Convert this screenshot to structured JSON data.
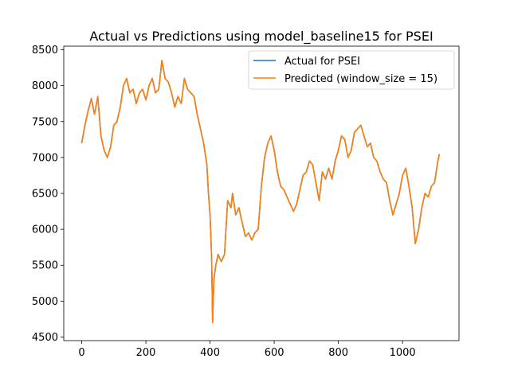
{
  "chart_data": {
    "type": "line",
    "title": "Actual vs Predictions using model_baseline15 for PSEI",
    "xlabel": "",
    "ylabel": "",
    "xlim": [
      -56,
      1176
    ],
    "ylim": [
      4450,
      8550
    ],
    "xticks": [
      0,
      200,
      400,
      600,
      800,
      1000
    ],
    "yticks": [
      4500,
      5000,
      5500,
      6000,
      6500,
      7000,
      7500,
      8000,
      8500
    ],
    "grid": false,
    "legend_position": "top-right",
    "series": [
      {
        "name": "Actual for PSEI",
        "color": "#1f77b4",
        "x": [
          0,
          10,
          20,
          30,
          40,
          50,
          60,
          70,
          80,
          90,
          100,
          110,
          120,
          130,
          140,
          150,
          160,
          170,
          180,
          190,
          200,
          210,
          220,
          230,
          240,
          250,
          260,
          270,
          280,
          290,
          300,
          310,
          320,
          330,
          340,
          350,
          360,
          370,
          380,
          390,
          395,
          400,
          405,
          408,
          412,
          418,
          425,
          435,
          445,
          455,
          465,
          470,
          480,
          490,
          500,
          510,
          520,
          530,
          540,
          550,
          560,
          570,
          580,
          590,
          600,
          610,
          620,
          630,
          640,
          650,
          660,
          670,
          680,
          690,
          700,
          710,
          720,
          730,
          740,
          750,
          760,
          770,
          780,
          790,
          800,
          810,
          820,
          830,
          840,
          850,
          860,
          870,
          880,
          890,
          900,
          910,
          920,
          930,
          940,
          950,
          960,
          970,
          980,
          990,
          1000,
          1010,
          1020,
          1030,
          1040,
          1050,
          1060,
          1070,
          1080,
          1090,
          1100,
          1110,
          1115
        ],
        "y": [
          7200,
          7450,
          7650,
          7820,
          7600,
          7850,
          7300,
          7100,
          7000,
          7150,
          7450,
          7500,
          7700,
          8000,
          8100,
          7900,
          7950,
          7750,
          7900,
          7950,
          7800,
          8000,
          8100,
          7900,
          7950,
          8350,
          8100,
          8050,
          7900,
          7700,
          7850,
          7750,
          8100,
          7950,
          7900,
          7850,
          7600,
          7400,
          7200,
          6900,
          6500,
          6200,
          5600,
          4700,
          5300,
          5500,
          5650,
          5550,
          5650,
          6400,
          6300,
          6500,
          6200,
          6300,
          6100,
          5900,
          5950,
          5850,
          5950,
          6000,
          6600,
          7000,
          7200,
          7300,
          7100,
          6800,
          6600,
          6550,
          6450,
          6350,
          6250,
          6350,
          6550,
          6750,
          6800,
          6950,
          6900,
          6650,
          6400,
          6800,
          6700,
          6850,
          6700,
          6950,
          7100,
          7300,
          7250,
          7000,
          7100,
          7350,
          7400,
          7450,
          7300,
          7150,
          7200,
          7000,
          6950,
          6800,
          6700,
          6650,
          6400,
          6200,
          6350,
          6500,
          6750,
          6850,
          6600,
          6300,
          5800,
          6000,
          6300,
          6500,
          6450,
          6600,
          6650,
          6950,
          7050
        ]
      },
      {
        "name": "Predicted (window_size = 15)",
        "color": "#ff7f0e",
        "x": [
          0,
          10,
          20,
          30,
          40,
          50,
          60,
          70,
          80,
          90,
          100,
          110,
          120,
          130,
          140,
          150,
          160,
          170,
          180,
          190,
          200,
          210,
          220,
          230,
          240,
          250,
          260,
          270,
          280,
          290,
          300,
          310,
          320,
          330,
          340,
          350,
          360,
          370,
          380,
          390,
          395,
          400,
          405,
          408,
          412,
          418,
          425,
          435,
          445,
          455,
          465,
          470,
          480,
          490,
          500,
          510,
          520,
          530,
          540,
          550,
          560,
          570,
          580,
          590,
          600,
          610,
          620,
          630,
          640,
          650,
          660,
          670,
          680,
          690,
          700,
          710,
          720,
          730,
          740,
          750,
          760,
          770,
          780,
          790,
          800,
          810,
          820,
          830,
          840,
          850,
          860,
          870,
          880,
          890,
          900,
          910,
          920,
          930,
          940,
          950,
          960,
          970,
          980,
          990,
          1000,
          1010,
          1020,
          1030,
          1040,
          1050,
          1060,
          1070,
          1080,
          1090,
          1100,
          1110,
          1115
        ],
        "y": [
          7200,
          7450,
          7650,
          7820,
          7600,
          7850,
          7300,
          7100,
          7000,
          7150,
          7450,
          7500,
          7700,
          8000,
          8100,
          7900,
          7950,
          7750,
          7900,
          7950,
          7800,
          8000,
          8100,
          7900,
          7950,
          8350,
          8100,
          8050,
          7900,
          7700,
          7850,
          7750,
          8100,
          7950,
          7900,
          7850,
          7600,
          7400,
          7200,
          6900,
          6500,
          6200,
          5600,
          4700,
          5300,
          5500,
          5650,
          5550,
          5650,
          6400,
          6300,
          6500,
          6200,
          6300,
          6100,
          5900,
          5950,
          5850,
          5950,
          6000,
          6600,
          7000,
          7200,
          7300,
          7100,
          6800,
          6600,
          6550,
          6450,
          6350,
          6250,
          6350,
          6550,
          6750,
          6800,
          6950,
          6900,
          6650,
          6400,
          6800,
          6700,
          6850,
          6700,
          6950,
          7100,
          7300,
          7250,
          7000,
          7100,
          7350,
          7400,
          7450,
          7300,
          7150,
          7200,
          7000,
          6950,
          6800,
          6700,
          6650,
          6400,
          6200,
          6350,
          6500,
          6750,
          6850,
          6600,
          6300,
          5800,
          6000,
          6300,
          6500,
          6450,
          6600,
          6650,
          6950,
          7050
        ]
      }
    ]
  }
}
